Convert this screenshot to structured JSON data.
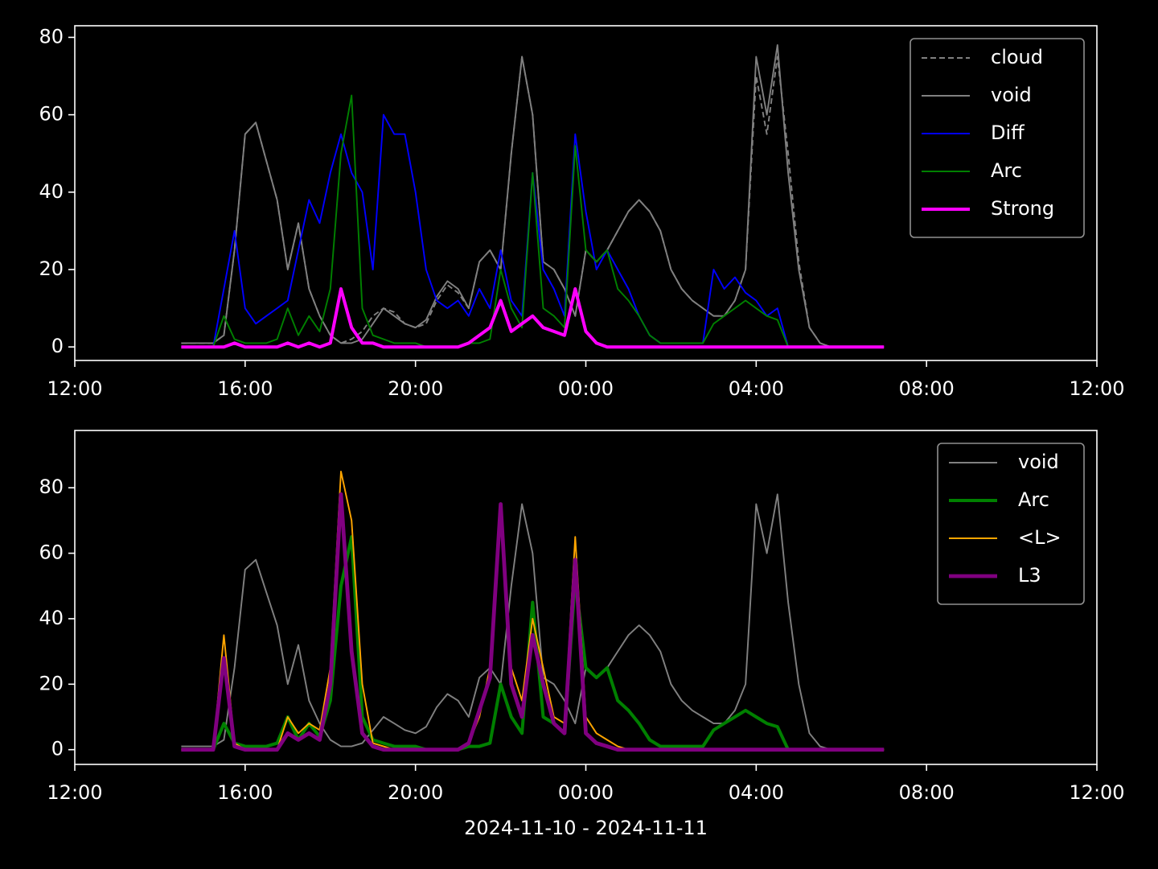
{
  "chart_data": [
    {
      "type": "line",
      "legend": "upper right",
      "xlim": [
        12,
        36
      ],
      "xticks": [
        {
          "value": 12,
          "label": "12:00"
        },
        {
          "value": 16,
          "label": "16:00"
        },
        {
          "value": 20,
          "label": "20:00"
        },
        {
          "value": 24,
          "label": "00:00"
        },
        {
          "value": 28,
          "label": "04:00"
        },
        {
          "value": 32,
          "label": "08:00"
        },
        {
          "value": 36,
          "label": "12:00"
        }
      ],
      "ylim": [
        -3.5,
        83
      ],
      "yticks": [
        0,
        20,
        40,
        60,
        80
      ],
      "x": [
        14.5,
        14.75,
        15,
        15.25,
        15.5,
        15.75,
        16,
        16.25,
        16.5,
        16.75,
        17,
        17.25,
        17.5,
        17.75,
        18,
        18.25,
        18.5,
        18.75,
        19,
        19.25,
        19.5,
        19.75,
        20,
        20.25,
        20.5,
        20.75,
        21,
        21.25,
        21.5,
        21.75,
        22,
        22.25,
        22.5,
        22.75,
        23,
        23.25,
        23.5,
        23.75,
        24,
        24.25,
        24.5,
        24.75,
        25,
        25.25,
        25.5,
        25.75,
        26,
        26.25,
        26.5,
        26.75,
        27,
        27.25,
        27.5,
        27.75,
        28,
        28.25,
        28.5,
        28.75,
        29,
        29.25,
        29.5,
        29.75,
        30,
        30.25,
        30.5,
        30.75,
        31
      ],
      "series": [
        {
          "name": "cloud",
          "color": "#808080",
          "dash": "dashed",
          "linewidth": 1.2,
          "values": [
            1,
            1,
            1,
            1,
            3,
            25,
            55,
            58,
            48,
            38,
            20,
            32,
            15,
            8,
            3,
            1,
            2,
            4,
            8,
            10,
            9,
            6,
            5,
            6,
            12,
            16,
            14,
            10,
            22,
            25,
            20,
            50,
            75,
            60,
            22,
            20,
            15,
            8,
            25,
            22,
            25,
            30,
            35,
            38,
            35,
            30,
            20,
            15,
            12,
            10,
            8,
            8,
            12,
            20,
            70,
            55,
            75,
            50,
            22,
            5,
            1,
            0,
            0,
            0,
            0,
            0,
            0
          ]
        },
        {
          "name": "void",
          "color": "#808080",
          "linewidth": 1.2,
          "values": [
            1,
            1,
            1,
            1,
            3,
            25,
            55,
            58,
            48,
            38,
            20,
            32,
            15,
            8,
            3,
            1,
            1,
            2,
            6,
            10,
            8,
            6,
            5,
            7,
            13,
            17,
            15,
            10,
            22,
            25,
            20,
            50,
            75,
            60,
            22,
            20,
            15,
            8,
            25,
            22,
            25,
            30,
            35,
            38,
            35,
            30,
            20,
            15,
            12,
            10,
            8,
            8,
            12,
            20,
            75,
            60,
            78,
            45,
            20,
            5,
            1,
            0,
            0,
            0,
            0,
            0,
            0
          ]
        },
        {
          "name": "Diff",
          "color": "#0000ff",
          "linewidth": 1.2,
          "values": [
            0,
            0,
            0,
            0,
            15,
            30,
            10,
            6,
            8,
            10,
            12,
            25,
            38,
            32,
            45,
            55,
            45,
            40,
            20,
            60,
            55,
            55,
            40,
            20,
            12,
            10,
            12,
            8,
            15,
            10,
            25,
            12,
            8,
            45,
            20,
            15,
            8,
            55,
            35,
            20,
            25,
            20,
            15,
            8,
            3,
            1,
            1,
            1,
            1,
            1,
            20,
            15,
            18,
            14,
            12,
            8,
            10,
            0,
            0,
            0,
            0,
            0,
            0,
            0,
            0,
            0,
            0
          ]
        },
        {
          "name": "Arc",
          "color": "#008000",
          "linewidth": 1.2,
          "values": [
            0,
            0,
            0,
            0,
            8,
            2,
            1,
            1,
            1,
            2,
            10,
            3,
            8,
            4,
            15,
            50,
            65,
            10,
            3,
            2,
            1,
            1,
            1,
            0,
            0,
            0,
            0,
            1,
            1,
            2,
            20,
            10,
            5,
            45,
            10,
            8,
            5,
            52,
            25,
            22,
            25,
            15,
            12,
            8,
            3,
            1,
            1,
            1,
            1,
            1,
            6,
            8,
            10,
            12,
            10,
            8,
            7,
            0,
            0,
            0,
            0,
            0,
            0,
            0,
            0,
            0,
            0
          ]
        },
        {
          "name": "Strong",
          "color": "#ff00ff",
          "linewidth": 2.5,
          "values": [
            0,
            0,
            0,
            0,
            0,
            1,
            0,
            0,
            0,
            0,
            1,
            0,
            1,
            0,
            1,
            15,
            5,
            1,
            1,
            0,
            0,
            0,
            0,
            0,
            0,
            0,
            0,
            1,
            3,
            5,
            12,
            4,
            6,
            8,
            5,
            4,
            3,
            15,
            4,
            1,
            0,
            0,
            0,
            0,
            0,
            0,
            0,
            0,
            0,
            0,
            0,
            0,
            0,
            0,
            0,
            0,
            0,
            0,
            0,
            0,
            0,
            0,
            0,
            0,
            0,
            0,
            0
          ]
        }
      ]
    },
    {
      "type": "line",
      "legend": "upper right",
      "xlabel": "2024-11-10 - 2024-11-11",
      "xlim": [
        12,
        36
      ],
      "xticks": [
        {
          "value": 12,
          "label": "12:00"
        },
        {
          "value": 16,
          "label": "16:00"
        },
        {
          "value": 20,
          "label": "20:00"
        },
        {
          "value": 24,
          "label": "00:00"
        },
        {
          "value": 28,
          "label": "04:00"
        },
        {
          "value": 32,
          "label": "08:00"
        },
        {
          "value": 36,
          "label": "12:00"
        }
      ],
      "ylim": [
        -4.5,
        97.5
      ],
      "yticks": [
        0,
        20,
        40,
        60,
        80
      ],
      "x": [
        14.5,
        14.75,
        15,
        15.25,
        15.5,
        15.75,
        16,
        16.25,
        16.5,
        16.75,
        17,
        17.25,
        17.5,
        17.75,
        18,
        18.25,
        18.5,
        18.75,
        19,
        19.25,
        19.5,
        19.75,
        20,
        20.25,
        20.5,
        20.75,
        21,
        21.25,
        21.5,
        21.75,
        22,
        22.25,
        22.5,
        22.75,
        23,
        23.25,
        23.5,
        23.75,
        24,
        24.25,
        24.5,
        24.75,
        25,
        25.25,
        25.5,
        25.75,
        26,
        26.25,
        26.5,
        26.75,
        27,
        27.25,
        27.5,
        27.75,
        28,
        28.25,
        28.5,
        28.75,
        29,
        29.25,
        29.5,
        29.75,
        30,
        30.25,
        30.5,
        30.75,
        31
      ],
      "series": [
        {
          "name": "void",
          "color": "#808080",
          "linewidth": 1.2,
          "values": [
            1,
            1,
            1,
            1,
            3,
            25,
            55,
            58,
            48,
            38,
            20,
            32,
            15,
            8,
            3,
            1,
            1,
            2,
            6,
            10,
            8,
            6,
            5,
            7,
            13,
            17,
            15,
            10,
            22,
            25,
            20,
            50,
            75,
            60,
            22,
            20,
            15,
            8,
            25,
            22,
            25,
            30,
            35,
            38,
            35,
            30,
            20,
            15,
            12,
            10,
            8,
            8,
            12,
            20,
            75,
            60,
            78,
            45,
            20,
            5,
            1,
            0,
            0,
            0,
            0,
            0,
            0
          ]
        },
        {
          "name": "Arc",
          "color": "#008000",
          "linewidth": 2.5,
          "values": [
            0,
            0,
            0,
            0,
            8,
            2,
            1,
            1,
            1,
            2,
            10,
            3,
            8,
            4,
            15,
            50,
            65,
            10,
            3,
            2,
            1,
            1,
            1,
            0,
            0,
            0,
            0,
            1,
            1,
            2,
            20,
            10,
            5,
            45,
            10,
            8,
            5,
            52,
            25,
            22,
            25,
            15,
            12,
            8,
            3,
            1,
            1,
            1,
            1,
            1,
            6,
            8,
            10,
            12,
            10,
            8,
            7,
            0,
            0,
            0,
            0,
            0,
            0,
            0,
            0,
            0,
            0
          ]
        },
        {
          "name": "<L>",
          "color": "#ffa500",
          "linewidth": 1.2,
          "values": [
            0,
            0,
            0,
            0,
            35,
            2,
            0,
            0,
            0,
            0,
            10,
            5,
            8,
            6,
            25,
            85,
            70,
            20,
            2,
            1,
            0,
            0,
            0,
            0,
            0,
            0,
            0,
            2,
            10,
            25,
            70,
            25,
            15,
            40,
            25,
            10,
            8,
            65,
            10,
            5,
            3,
            1,
            0,
            0,
            0,
            0,
            0,
            0,
            0,
            0,
            0,
            0,
            0,
            0,
            0,
            0,
            0,
            0,
            0,
            0,
            0,
            0,
            0,
            0,
            0,
            0,
            0
          ]
        },
        {
          "name": "L3",
          "color": "#800080",
          "linewidth": 3,
          "values": [
            0,
            0,
            0,
            0,
            28,
            1,
            0,
            0,
            0,
            0,
            5,
            3,
            5,
            3,
            20,
            78,
            30,
            5,
            1,
            0,
            0,
            0,
            0,
            0,
            0,
            0,
            0,
            2,
            12,
            22,
            75,
            20,
            10,
            35,
            20,
            8,
            5,
            58,
            5,
            2,
            1,
            0,
            0,
            0,
            0,
            0,
            0,
            0,
            0,
            0,
            0,
            0,
            0,
            0,
            0,
            0,
            0,
            0,
            0,
            0,
            0,
            0,
            0,
            0,
            0,
            0,
            0
          ]
        }
      ]
    }
  ]
}
